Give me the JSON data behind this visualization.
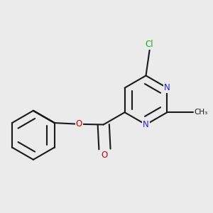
{
  "background_color": "#ebebeb",
  "bond_color": "#1a1a1a",
  "N_color": "#2424d4",
  "O_color": "#cc0000",
  "Cl_color": "#1aaa1a",
  "line_width": 1.5,
  "dbo": 0.018,
  "figsize": [
    3.0,
    3.0
  ],
  "dpi": 100,
  "xlim": [
    0.0,
    1.0
  ],
  "ylim": [
    0.0,
    1.0
  ]
}
